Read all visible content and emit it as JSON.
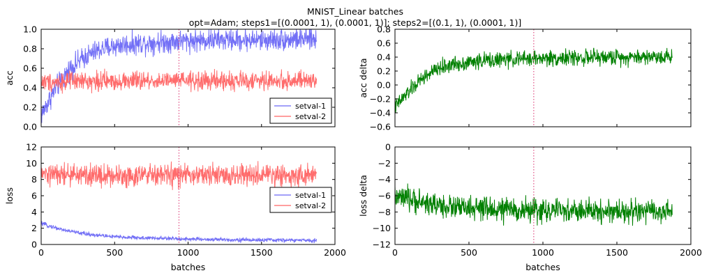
{
  "figure": {
    "title_line1": "MNIST_Linear batches",
    "title_line2": "opt=Adam; steps1=[(0.0001, 1), (0.0001, 1)]; steps2=[(0.1, 1), (0.0001, 1)]"
  },
  "colors": {
    "setval1": "#6a67f5",
    "setval2": "#ff6464",
    "delta": "#008000",
    "vline": "#e04d83"
  },
  "chart_data": [
    {
      "id": "acc",
      "type": "line",
      "ylabel": "acc",
      "xlabel": "",
      "xlim": [
        0,
        2000
      ],
      "ylim": [
        0.0,
        1.0
      ],
      "xticks": [
        0,
        500,
        1000,
        1500,
        2000
      ],
      "yticks": [
        0.0,
        0.2,
        0.4,
        0.6,
        0.8,
        1.0
      ],
      "xtick_labels": [],
      "ytick_labels": [
        "0.0",
        "0.2",
        "0.4",
        "0.6",
        "0.8",
        "1.0"
      ],
      "vline_x": 938,
      "legend": {
        "position": "lower-right",
        "entries": [
          "setval-1",
          "setval-2"
        ]
      },
      "series": [
        {
          "name": "setval-1",
          "x": [
            0,
            100,
            200,
            300,
            400,
            500,
            700,
            938,
            1200,
            1500,
            1875
          ],
          "values": [
            0.12,
            0.4,
            0.6,
            0.72,
            0.79,
            0.83,
            0.86,
            0.88,
            0.89,
            0.89,
            0.9
          ],
          "noise": 0.07
        },
        {
          "name": "setval-2",
          "x": [
            0,
            500,
            1000,
            1500,
            1875
          ],
          "values": [
            0.46,
            0.47,
            0.47,
            0.47,
            0.47
          ],
          "noise": 0.06
        }
      ]
    },
    {
      "id": "accdelta",
      "type": "line",
      "ylabel": "acc delta",
      "xlabel": "",
      "xlim": [
        0,
        2000
      ],
      "ylim": [
        -0.6,
        0.8
      ],
      "xticks": [
        0,
        500,
        1000,
        1500,
        2000
      ],
      "yticks": [
        -0.6,
        -0.4,
        -0.2,
        0.0,
        0.2,
        0.4,
        0.6,
        0.8
      ],
      "xtick_labels": [],
      "ytick_labels": [
        "−0.6",
        "−0.4",
        "−0.2",
        "0.0",
        "0.2",
        "0.4",
        "0.6",
        "0.8"
      ],
      "vline_x": 938,
      "series": [
        {
          "name": "",
          "x": [
            0,
            100,
            200,
            300,
            400,
            600,
            938,
            1200,
            1500,
            1875
          ],
          "values": [
            -0.32,
            -0.08,
            0.12,
            0.24,
            0.3,
            0.35,
            0.38,
            0.39,
            0.4,
            0.41
          ],
          "noise": 0.07
        }
      ]
    },
    {
      "id": "loss",
      "type": "line",
      "ylabel": "loss",
      "xlabel": "batches",
      "xlim": [
        0,
        2000
      ],
      "ylim": [
        0,
        12
      ],
      "xticks": [
        0,
        500,
        1000,
        1500,
        2000
      ],
      "yticks": [
        0,
        2,
        4,
        6,
        8,
        10,
        12
      ],
      "xtick_labels": [
        "0",
        "500",
        "1000",
        "1500",
        "2000"
      ],
      "ytick_labels": [
        "0",
        "2",
        "4",
        "6",
        "8",
        "10",
        "12"
      ],
      "vline_x": 938,
      "legend": {
        "position": "center-right",
        "entries": [
          "setval-1",
          "setval-2"
        ]
      },
      "series": [
        {
          "name": "setval-1",
          "x": [
            0,
            50,
            150,
            300,
            500,
            700,
            938,
            1200,
            1500,
            1875
          ],
          "values": [
            2.6,
            2.3,
            1.8,
            1.3,
            0.95,
            0.8,
            0.7,
            0.6,
            0.55,
            0.5
          ],
          "noise": 0.15
        },
        {
          "name": "setval-2",
          "x": [
            0,
            500,
            1000,
            1500,
            1875
          ],
          "values": [
            8.6,
            8.5,
            8.5,
            8.5,
            8.5
          ],
          "noise": 0.85
        }
      ]
    },
    {
      "id": "lossdelta",
      "type": "line",
      "ylabel": "loss delta",
      "xlabel": "batches",
      "xlim": [
        0,
        2000
      ],
      "ylim": [
        -12,
        0
      ],
      "xticks": [
        0,
        500,
        1000,
        1500,
        2000
      ],
      "yticks": [
        -12,
        -10,
        -8,
        -6,
        -4,
        -2,
        0
      ],
      "xtick_labels": [
        "0",
        "500",
        "1000",
        "1500",
        "2000"
      ],
      "ytick_labels": [
        "−12",
        "−10",
        "−8",
        "−6",
        "−4",
        "−2",
        "0"
      ],
      "vline_x": 938,
      "series": [
        {
          "name": "",
          "x": [
            0,
            100,
            300,
            500,
            700,
            938,
            1200,
            1500,
            1875
          ],
          "values": [
            -6.2,
            -6.5,
            -7.2,
            -7.6,
            -7.7,
            -7.8,
            -7.9,
            -7.9,
            -8.0
          ],
          "noise": 0.9
        }
      ]
    }
  ]
}
